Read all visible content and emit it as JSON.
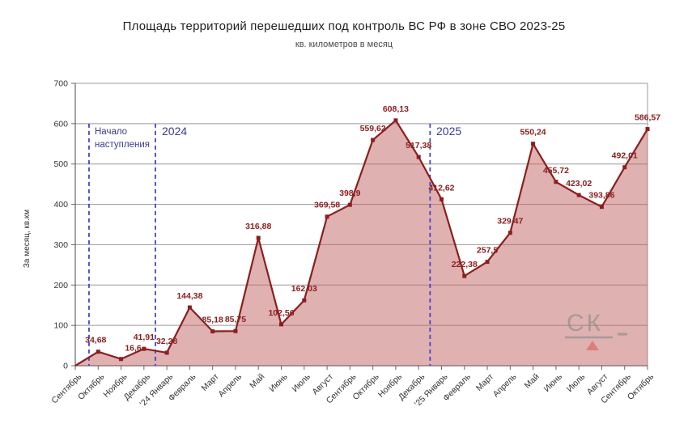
{
  "page": {
    "background": "#ffffff"
  },
  "chart_data": {
    "type": "area",
    "title": "Площадь территорий перешедших под контроль ВС РФ в зоне СВО 2023-25",
    "subtitle": "кв. километров в месяц",
    "xlabel": "",
    "ylabel": "За месяц, кв.км",
    "ylim": [
      0,
      700
    ],
    "yticks": [
      0,
      100,
      200,
      300,
      400,
      500,
      600,
      700
    ],
    "grid": "horizontal",
    "legend": "none",
    "categories": [
      "Сентябрь",
      "Октябрь",
      "Ноябрь",
      "Декабрь",
      "'24 Январь",
      "Февраль",
      "Март",
      "Апрель",
      "Май",
      "Июнь",
      "Июль",
      "Август",
      "Сентябрь",
      "Октябрь",
      "Ноябрь",
      "Декабрь",
      "'25 Январь",
      "Февраль",
      "Март",
      "Апрель",
      "Май",
      "Июнь",
      "Июль",
      "Август",
      "Сентябрь",
      "Октябрь"
    ],
    "values": [
      0,
      34.68,
      16.6,
      41.91,
      32.28,
      144.38,
      85.18,
      85.75,
      316.88,
      102.56,
      162.03,
      369.58,
      398.9,
      559.62,
      608.13,
      517.38,
      412.62,
      222.38,
      257.5,
      329.47,
      550.24,
      455.72,
      423.02,
      393.86,
      492.01,
      586.57
    ],
    "point_labels": [
      "",
      "34,68",
      "16,6",
      "41,91",
      "32,28",
      "144,38",
      "85,18",
      "85,75",
      "316,88",
      "102,56",
      "162,03",
      "369,58",
      "398,9",
      "559,62",
      "608,13",
      "517,38",
      "412,62",
      "222,38",
      "257,5",
      "329,47",
      "550,24",
      "455,72",
      "423,02",
      "393,86",
      "492,01",
      "586,57"
    ],
    "annotations": {
      "offensive_start": {
        "line1": "Начало",
        "line2": "наступления",
        "x_index": 0.6,
        "y_top": 600
      },
      "year_2024": {
        "label": "2024",
        "x_index": 3.5,
        "y_top": 600
      },
      "year_2025": {
        "label": "2025",
        "x_index": 15.5,
        "y_top": 600
      }
    },
    "colors": {
      "line": "#8b1e1e",
      "marker": "#8b1e1e",
      "area_fill": "#bf6363",
      "area_opacity": 0.5,
      "point_label": "#8b1e1e",
      "grid": "#999999",
      "spine": "#666666",
      "tick_label": "#333333",
      "annotation_text": "#3a3b8f",
      "annotation_line": "#4343c9"
    }
  },
  "watermark": {
    "text": "СК",
    "color": "#8a8a8a",
    "triangle_color": "#de5f5c"
  }
}
